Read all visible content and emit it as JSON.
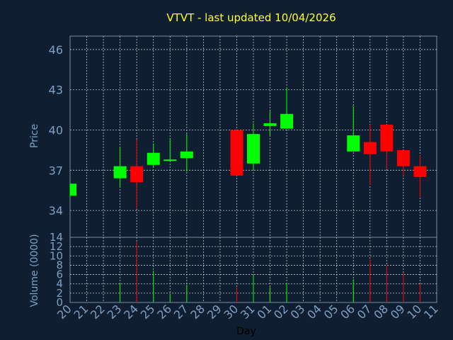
{
  "chart_data": {
    "type": "candlestick",
    "title": "VTVT - last updated 10/04/2026",
    "xlabel": "Day",
    "price_panel": {
      "ylabel": "Price",
      "ylim": [
        32,
        47
      ],
      "yticks": [
        34,
        37,
        40,
        43,
        46
      ],
      "grid": true
    },
    "volume_panel": {
      "ylabel": "Volume (0000)",
      "ylim": [
        0,
        14
      ],
      "yticks": [
        0,
        2,
        4,
        6,
        8,
        10,
        12,
        14
      ],
      "grid": true
    },
    "colors": {
      "up": "#00ff00",
      "down": "#ff0000",
      "background": "#0f1e30",
      "title": "#ffff33",
      "axis_text": "#7fa0c4"
    },
    "categories": [
      "20",
      "21",
      "22",
      "23",
      "24",
      "25",
      "26",
      "27",
      "28",
      "29",
      "30",
      "31",
      "01",
      "02",
      "03",
      "04",
      "05",
      "06",
      "07",
      "08",
      "09",
      "10",
      "11"
    ],
    "candles": [
      {
        "day": "20",
        "open": 35.1,
        "high": 36.0,
        "low": 35.0,
        "close": 36.0,
        "volume": 0
      },
      {
        "day": "23",
        "open": 36.4,
        "high": 38.7,
        "low": 35.7,
        "close": 37.3,
        "volume": 4.2
      },
      {
        "day": "24",
        "open": 37.3,
        "high": 39.3,
        "low": 34.1,
        "close": 36.1,
        "volume": 13.0
      },
      {
        "day": "25",
        "open": 37.4,
        "high": 39.0,
        "low": 37.2,
        "close": 38.3,
        "volume": 6.8
      },
      {
        "day": "26",
        "open": 37.7,
        "high": 39.4,
        "low": 37.7,
        "close": 37.8,
        "volume": 1.8
      },
      {
        "day": "27",
        "open": 37.9,
        "high": 39.7,
        "low": 36.9,
        "close": 38.4,
        "volume": 3.8
      },
      {
        "day": "30",
        "open": 40.0,
        "high": 40.0,
        "low": 36.6,
        "close": 36.6,
        "volume": 3.2
      },
      {
        "day": "31",
        "open": 37.5,
        "high": 40.5,
        "low": 37.0,
        "close": 39.7,
        "volume": 5.8
      },
      {
        "day": "01",
        "open": 40.3,
        "high": 41.4,
        "low": 39.6,
        "close": 40.5,
        "volume": 3.3
      },
      {
        "day": "02",
        "open": 40.1,
        "high": 43.1,
        "low": 40.1,
        "close": 41.2,
        "volume": 4.2
      },
      {
        "day": "06",
        "open": 38.4,
        "high": 41.8,
        "low": 38.4,
        "close": 39.6,
        "volume": 5.0
      },
      {
        "day": "07",
        "open": 39.1,
        "high": 40.4,
        "low": 35.9,
        "close": 38.2,
        "volume": 9.3
      },
      {
        "day": "08",
        "open": 40.4,
        "high": 40.4,
        "low": 37.1,
        "close": 38.4,
        "volume": 8.0
      },
      {
        "day": "09",
        "open": 38.5,
        "high": 38.5,
        "low": 36.6,
        "close": 37.3,
        "volume": 6.4
      },
      {
        "day": "10",
        "open": 37.3,
        "high": 38.1,
        "low": 35.0,
        "close": 36.5,
        "volume": 4.0
      }
    ]
  }
}
